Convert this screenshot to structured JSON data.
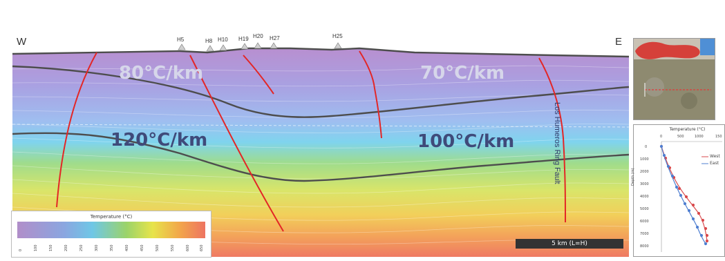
{
  "section": {
    "direction_left": "W",
    "direction_right": "E",
    "wells": [
      "H5",
      "H8",
      "H10",
      "H19",
      "H20",
      "H27",
      "H25"
    ],
    "gradients": [
      "80°C/km",
      "70°C/km",
      "120°C/km",
      "100°C/km"
    ],
    "fault_label": "Los Humeros Ring Fault",
    "scale_bar": "5 km (L=H)"
  },
  "legend": {
    "title": "Temperature (°C)",
    "ticks": [
      "0",
      "100",
      "150",
      "200",
      "250",
      "300",
      "350",
      "400",
      "450",
      "500",
      "550",
      "600",
      "650"
    ],
    "colors": [
      "#b18ec9",
      "#8aa6e0",
      "#6fc7e6",
      "#9bd36a",
      "#e7e44a",
      "#f2a84a",
      "#ee7461"
    ]
  },
  "profile_plot": {
    "title": "Temperature (°C)",
    "x_ticks": [
      "0",
      "500",
      "1000",
      "150"
    ],
    "y_ticks": [
      "0",
      "1000",
      "2000",
      "3000",
      "4000",
      "5000",
      "6000",
      "7000",
      "8000"
    ],
    "y_label": "Depth (m)",
    "series": [
      {
        "name": "West",
        "color": "#d9494b"
      },
      {
        "name": "East",
        "color": "#4f7fd1"
      }
    ]
  }
}
